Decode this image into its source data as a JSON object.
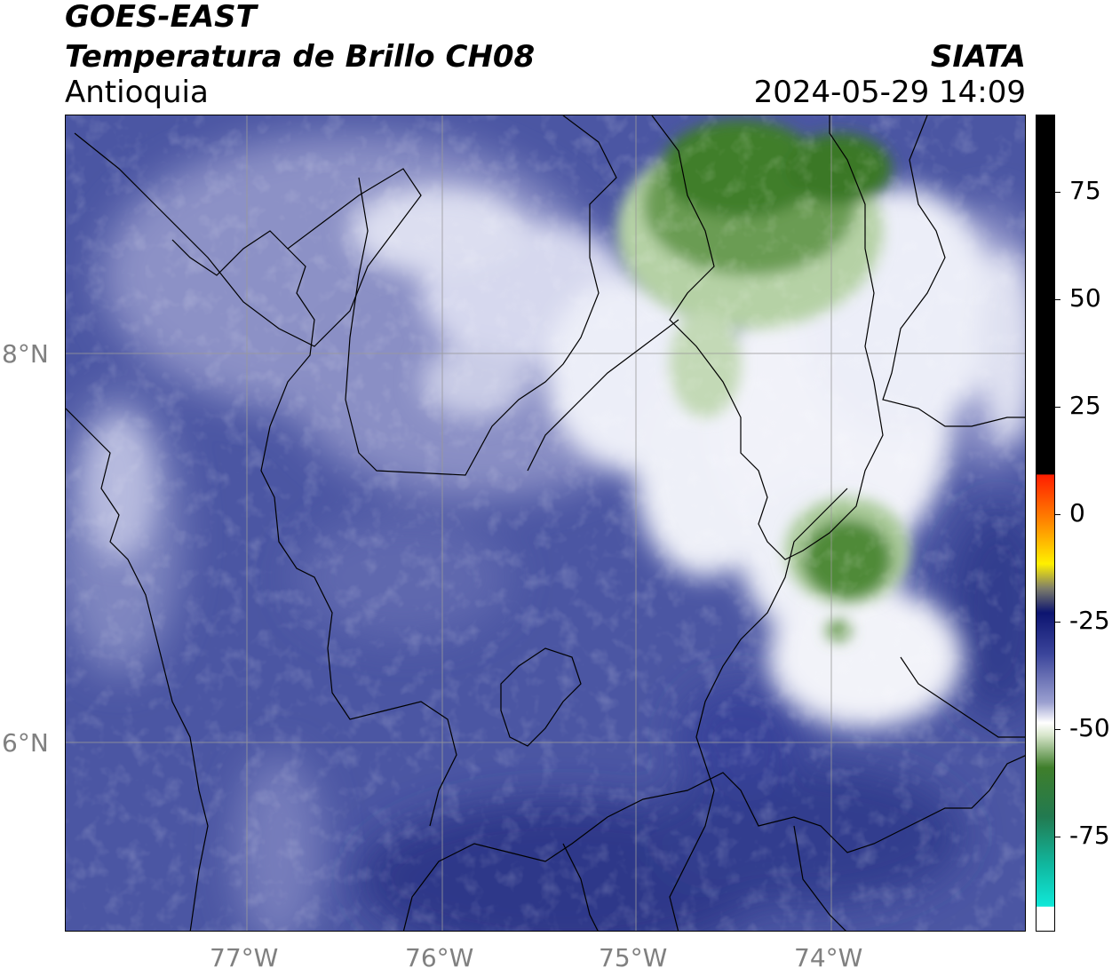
{
  "header": {
    "line1": "GOES-EAST",
    "line2": "Temperatura de Brillo CH08",
    "line3": "Antioquia",
    "org": "SIATA",
    "datetime": "2024-05-29 14:09"
  },
  "map": {
    "lat_labels": [
      "8°N",
      "6°N"
    ],
    "lon_labels": [
      "77°W",
      "76°W",
      "75°W",
      "74°W"
    ]
  },
  "colorbar": {
    "tick_labels": [
      "75",
      "50",
      "25",
      "0",
      "-25",
      "-50",
      "-75"
    ],
    "colors": {
      "background_field": "#4b56a3",
      "dark_field": "#2d3588",
      "light_field": "#c8cbe6",
      "cloud_white": "#f4f4fb",
      "cold_green": "#3f7e2b",
      "warm_black": "#000000",
      "red": "#ff1e00",
      "orange": "#ff9a00",
      "yellow": "#fff000",
      "navy": "#0c1470",
      "cyan": "#10e8d8",
      "grid": "#9a9a9a"
    }
  }
}
